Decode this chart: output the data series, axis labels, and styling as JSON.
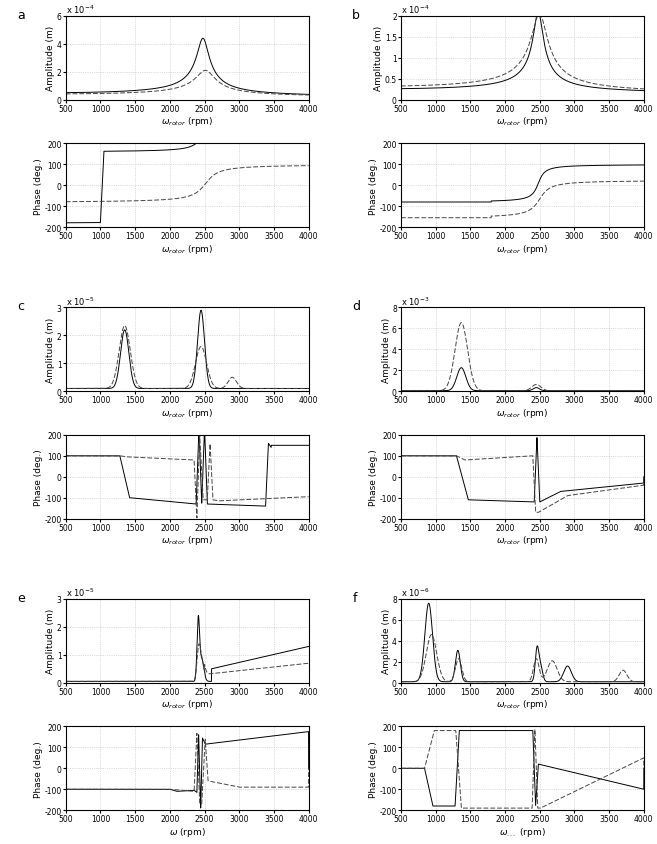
{
  "panel_labels": [
    "a",
    "b",
    "c",
    "d",
    "e",
    "f"
  ],
  "omega_range": [
    500,
    4000
  ],
  "x_ticks": [
    500,
    1000,
    1500,
    2000,
    2500,
    3000,
    3500,
    4000
  ],
  "amp_ylabel": "Amplitude (m)",
  "phase_ylabel": "Phase (deg.)",
  "panels": {
    "a": {
      "amp_ylim": [
        0,
        0.0006
      ],
      "amp_yticks": [
        0,
        0.0002,
        0.0004,
        0.0006
      ],
      "amp_yticklabels": [
        "0",
        "2",
        "4",
        "6"
      ],
      "amp_exp": "-4",
      "phase_ylim": [
        -200,
        200
      ],
      "phase_yticks": [
        -200,
        -100,
        0,
        100,
        200
      ],
      "xlabel_amp": "$\\omega_{rotor}$ (rpm)",
      "xlabel_phase": "$\\omega_{rotor}$\n(rpm)"
    },
    "b": {
      "amp_ylim": [
        0,
        0.0002
      ],
      "amp_yticks": [
        0,
        5e-05,
        0.0001,
        0.00015,
        0.0002
      ],
      "amp_yticklabels": [
        "0",
        "0.5",
        "1",
        "1.5",
        "2"
      ],
      "amp_exp": "-4",
      "phase_ylim": [
        -200,
        200
      ],
      "phase_yticks": [
        -200,
        -100,
        0,
        100,
        200
      ],
      "xlabel_amp": "$\\omega_{rotor}$ (rpm)",
      "xlabel_phase": "$\\omega_{rotor}$\n(rpm)"
    },
    "c": {
      "amp_ylim": [
        0,
        3e-05
      ],
      "amp_yticks": [
        0,
        1e-05,
        2e-05,
        3e-05
      ],
      "amp_yticklabels": [
        "0",
        "1",
        "2",
        "3"
      ],
      "amp_exp": "-5",
      "phase_ylim": [
        -200,
        200
      ],
      "phase_yticks": [
        -200,
        -100,
        0,
        100,
        200
      ],
      "xlabel_amp": "$\\omega_{rotor}$ (rpm)",
      "xlabel_phase": "$\\omega_{rotor}$\n(rpm)"
    },
    "d": {
      "amp_ylim": [
        0,
        0.008
      ],
      "amp_yticks": [
        0,
        0.002,
        0.004,
        0.006,
        0.008
      ],
      "amp_yticklabels": [
        "0",
        "2",
        "4",
        "6",
        "8"
      ],
      "amp_exp": "-3",
      "phase_ylim": [
        -200,
        200
      ],
      "phase_yticks": [
        -200,
        -100,
        0,
        100,
        200
      ],
      "xlabel_amp": "$\\omega_{rotor}$ (rpm)",
      "xlabel_phase": "$\\omega_{rotor}$\n(rpm)"
    },
    "e": {
      "amp_ylim": [
        0,
        3e-05
      ],
      "amp_yticks": [
        0,
        1e-05,
        2e-05,
        3e-05
      ],
      "amp_yticklabels": [
        "0",
        "1",
        "2",
        "3"
      ],
      "amp_exp": "-5",
      "phase_ylim": [
        -200,
        200
      ],
      "phase_yticks": [
        -200,
        -100,
        0,
        100,
        200
      ],
      "xlabel_amp": "$\\omega_{rotor}$ (rpm)",
      "xlabel_phase": "$\\omega$\n(rpm)"
    },
    "f": {
      "amp_ylim": [
        0,
        8e-06
      ],
      "amp_yticks": [
        0,
        2e-06,
        4e-06,
        6e-06,
        8e-06
      ],
      "amp_yticklabels": [
        "0",
        "2",
        "4",
        "6",
        "8"
      ],
      "amp_exp": "-6",
      "phase_ylim": [
        -200,
        200
      ],
      "phase_yticks": [
        -200,
        -100,
        0,
        100,
        200
      ],
      "xlabel_amp": "$\\omega_{rotor}$ (rpm)",
      "xlabel_phase": "$\\omega_{...}$\n(rpm)"
    }
  },
  "line_solid_color": "#000000",
  "line_dashed_color": "#444444",
  "grid_color": "#bbbbbb",
  "background_color": "#ffffff",
  "tick_fontsize": 5.5,
  "label_fontsize": 6.5,
  "panel_label_fontsize": 9
}
